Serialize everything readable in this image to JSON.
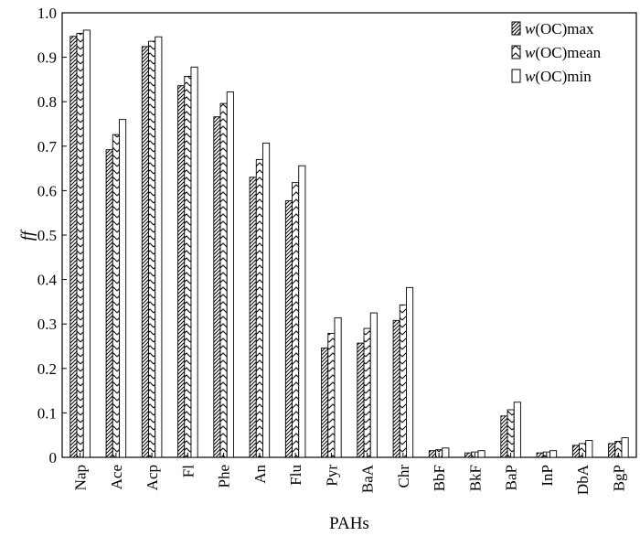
{
  "chart_data": {
    "type": "bar",
    "xlabel": "PAHs",
    "ylabel": "ff",
    "ylim": [
      0,
      1.0
    ],
    "yticks": [
      "0",
      "0.1",
      "0.2",
      "0.3",
      "0.4",
      "0.5",
      "0.6",
      "0.7",
      "0.8",
      "0.9",
      "1.0"
    ],
    "categories": [
      "Nap",
      "Ace",
      "Acp",
      "Fl",
      "Phe",
      "An",
      "Flu",
      "Pyr",
      "BaA",
      "Chr",
      "BbF",
      "BkF",
      "BaP",
      "InP",
      "DbA",
      "BgP"
    ],
    "legend_position": "top-right",
    "series": [
      {
        "name": "w(OC)max",
        "legend_italic": "w",
        "legend_rest": "(OC)max",
        "pattern": "diagonal-stripes",
        "values": [
          0.947,
          0.692,
          0.924,
          0.836,
          0.766,
          0.63,
          0.577,
          0.246,
          0.257,
          0.308,
          0.015,
          0.01,
          0.093,
          0.01,
          0.027,
          0.031
        ]
      },
      {
        "name": "w(OC)mean",
        "legend_italic": "w",
        "legend_rest": "(OC)mean",
        "pattern": "chevron",
        "values": [
          0.954,
          0.726,
          0.936,
          0.857,
          0.796,
          0.67,
          0.618,
          0.279,
          0.29,
          0.343,
          0.017,
          0.012,
          0.107,
          0.012,
          0.031,
          0.036
        ]
      },
      {
        "name": "w(OC)min",
        "legend_italic": "w",
        "legend_rest": "(OC)min",
        "pattern": "open",
        "values": [
          0.961,
          0.76,
          0.946,
          0.878,
          0.822,
          0.707,
          0.656,
          0.314,
          0.325,
          0.382,
          0.021,
          0.015,
          0.124,
          0.015,
          0.038,
          0.044
        ]
      }
    ]
  }
}
